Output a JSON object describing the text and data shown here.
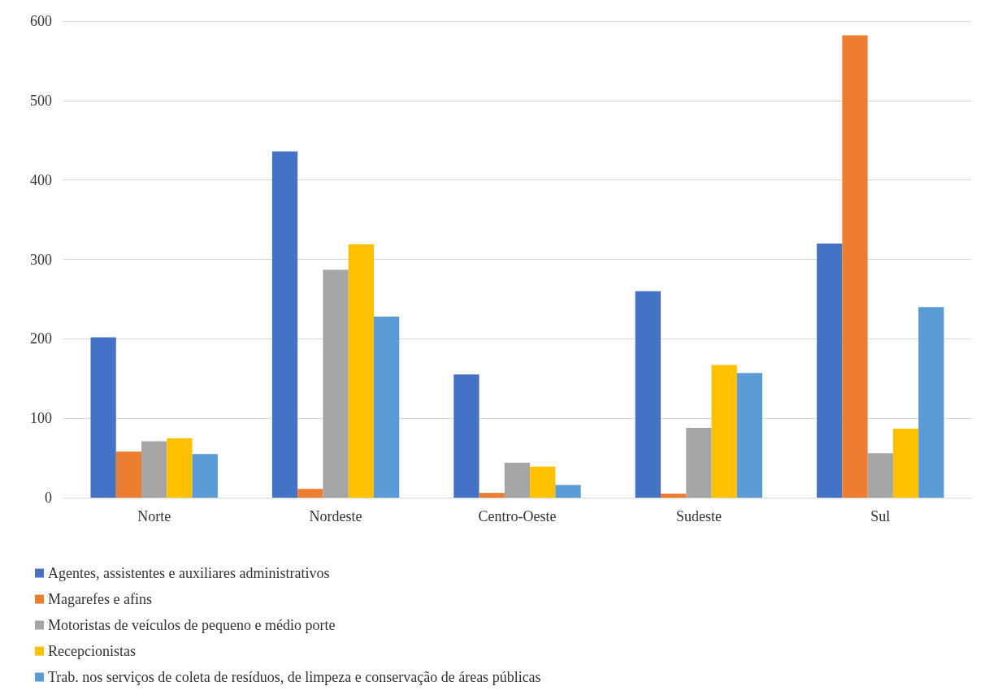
{
  "chart_data": {
    "type": "bar",
    "categories": [
      "Norte",
      "Nordeste",
      "Centro-Oeste",
      "Sudeste",
      "Sul"
    ],
    "series": [
      {
        "name": "Agentes, assistentes e auxiliares administrativos",
        "color": "#4472c4",
        "values": [
          202,
          436,
          155,
          260,
          320
        ]
      },
      {
        "name": "Magarefes e afins",
        "color": "#ed7d31",
        "values": [
          58,
          11,
          6,
          5,
          582
        ]
      },
      {
        "name": "Motoristas de veículos de pequeno e médio porte",
        "color": "#a5a5a5",
        "values": [
          71,
          287,
          44,
          88,
          56
        ]
      },
      {
        "name": "Recepcionistas",
        "color": "#ffc000",
        "values": [
          75,
          319,
          39,
          167,
          87
        ]
      },
      {
        "name": "Trab. nos serviços de coleta de resíduos, de limpeza e conservação de áreas públicas",
        "color": "#5b9bd5",
        "values": [
          55,
          228,
          16,
          157,
          240
        ]
      }
    ],
    "ylim": [
      0,
      600
    ],
    "yticks": [
      0,
      100,
      200,
      300,
      400,
      500,
      600
    ],
    "grid": "y",
    "legend": "bottom"
  }
}
